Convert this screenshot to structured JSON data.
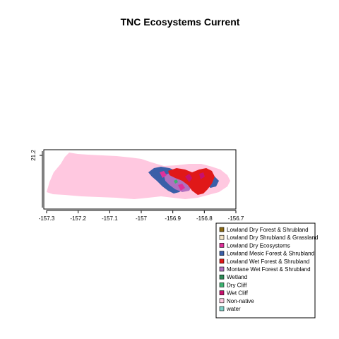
{
  "map": {
    "title": "TNC Ecosystems Current",
    "x_axis": {
      "ticks": [
        "-157.3",
        "-157.2",
        "-157.1",
        "-157",
        "-156.9",
        "-156.8",
        "-156.7"
      ],
      "range": [
        -157.32,
        -156.68
      ]
    },
    "y_axis": {
      "ticks": [
        "21.2"
      ],
      "range": [
        21.05,
        21.22
      ]
    },
    "legend": {
      "placement": "bottom-right",
      "items": [
        {
          "label": "Lowland Dry Forest & Shrubland",
          "color": "#8b6914"
        },
        {
          "label": "Lowland Dry Shrubland & Grassland",
          "color": "#f5e6c8"
        },
        {
          "label": "Lowland Dry Ecosystems",
          "color": "#e0309a"
        },
        {
          "label": "Lowland Mesic Forest & Shrubland",
          "color": "#3a5fa8"
        },
        {
          "label": "Lowland Wet Forest & Shrubland",
          "color": "#e01818"
        },
        {
          "label": "Montane Wet Forest & Shrubland",
          "color": "#b070c0"
        },
        {
          "label": "Wetland",
          "color": "#2e8b57"
        },
        {
          "label": "Dry Cliff",
          "color": "#3cb371"
        },
        {
          "label": "Wet Cliff",
          "color": "#c8106e"
        },
        {
          "label": "Non-native",
          "color": "#ffc8e0"
        },
        {
          "label": "water",
          "color": "#7fd0c8"
        }
      ]
    }
  }
}
